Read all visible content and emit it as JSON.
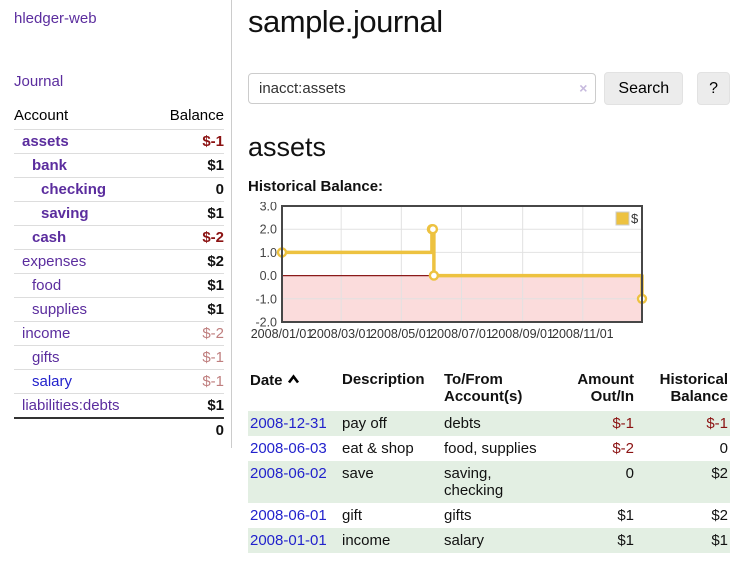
{
  "app": {
    "brand": "hledger-web",
    "nav": {
      "journal": "Journal"
    }
  },
  "colors": {
    "accent_purple": "#5b2d9e",
    "link_blue": "#2222cc",
    "negative_red": "#8b1212",
    "negative_soft": "#bf7e7e",
    "stripe_green": "#e3efe3",
    "chart_gold": "#edc240",
    "negative_region_pink": "#fbdcdc",
    "zero_line_red": "#8b1a1a"
  },
  "sidebar": {
    "col_account": "Account",
    "col_balance": "Balance",
    "rows": [
      {
        "account": "assets",
        "balance": "$-1"
      },
      {
        "account": "bank",
        "balance": "$1"
      },
      {
        "account": "checking",
        "balance": "0"
      },
      {
        "account": "saving",
        "balance": "$1"
      },
      {
        "account": "cash",
        "balance": "$-2"
      },
      {
        "account": "expenses",
        "balance": "$2"
      },
      {
        "account": "food",
        "balance": "$1"
      },
      {
        "account": "supplies",
        "balance": "$1"
      },
      {
        "account": "income",
        "balance": "$-2"
      },
      {
        "account": "gifts",
        "balance": "$-1"
      },
      {
        "account": "salary",
        "balance": "$-1"
      },
      {
        "account": "liabilities:debts",
        "balance": "$1"
      }
    ],
    "total": "0"
  },
  "main": {
    "title": "sample.journal",
    "search": {
      "value": "inacct:assets",
      "clear_icon": "×",
      "button": "Search",
      "help_button": "?"
    },
    "account_heading": "assets",
    "chart_heading": "Historical Balance:"
  },
  "chart_data": {
    "type": "line",
    "style": "step",
    "title": "Historical Balance",
    "xlim": [
      "2008-01-01",
      "2008-12-31"
    ],
    "ylim": [
      -2.0,
      3.0
    ],
    "y_ticks": [
      3.0,
      2.0,
      1.0,
      0.0,
      -1.0,
      -2.0
    ],
    "x_ticks": [
      "2008/01/01",
      "2008/03/01",
      "2008/05/01",
      "2008/07/01",
      "2008/09/01",
      "2008/11/01"
    ],
    "grid": true,
    "legend_position": "top-right",
    "negative_region_fill": "#fbdcdc",
    "zero_line_color": "#8b1a1a",
    "series": [
      {
        "name": "$",
        "color": "#edc240",
        "points": [
          [
            "2008-01-01",
            1
          ],
          [
            "2008-06-01",
            2
          ],
          [
            "2008-06-02",
            2
          ],
          [
            "2008-06-03",
            0
          ],
          [
            "2008-12-31",
            -1
          ]
        ]
      }
    ]
  },
  "register": {
    "headers": {
      "date": "Date",
      "description": "Description",
      "tofrom": "To/From Account(s)",
      "amount": "Amount Out/In",
      "balance": "Historical Balance"
    },
    "rows": [
      {
        "date": "2008-12-31",
        "description": "pay off",
        "accounts": "debts",
        "amount": "$-1",
        "balance": "$-1"
      },
      {
        "date": "2008-06-03",
        "description": "eat & shop",
        "accounts": "food, supplies",
        "amount": "$-2",
        "balance": "0"
      },
      {
        "date": "2008-06-02",
        "description": "save",
        "accounts": "saving, checking",
        "amount": "0",
        "balance": "$2"
      },
      {
        "date": "2008-06-01",
        "description": "gift",
        "accounts": "gifts",
        "amount": "$1",
        "balance": "$2"
      },
      {
        "date": "2008-01-01",
        "description": "income",
        "accounts": "salary",
        "amount": "$1",
        "balance": "$1"
      }
    ]
  }
}
